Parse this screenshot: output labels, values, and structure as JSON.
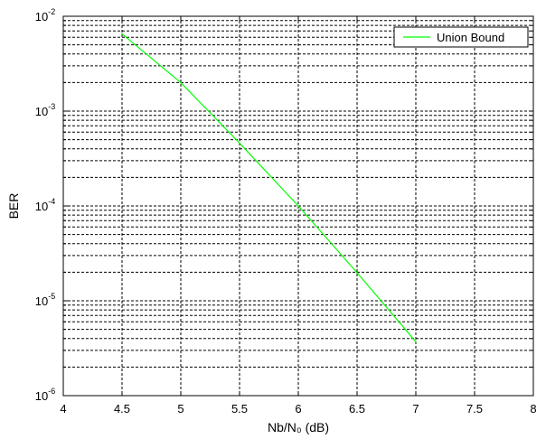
{
  "chart_data": {
    "type": "line",
    "title": "",
    "xlabel": "Nb/N₀ (dB)",
    "ylabel": "BER",
    "xlim": [
      4,
      8
    ],
    "ylim": [
      1e-06,
      0.01
    ],
    "yscale": "log",
    "grid": true,
    "legend_position": "top-right",
    "x_ticks": [
      4,
      4.5,
      5,
      5.5,
      6,
      6.5,
      7,
      7.5,
      8
    ],
    "x_tick_labels": [
      "4",
      "4.5",
      "5",
      "5.5",
      "6",
      "6.5",
      "7",
      "7.5",
      "8"
    ],
    "y_tick_labels": [
      {
        "base": "10",
        "exp": "-6",
        "value": 1e-06
      },
      {
        "base": "10",
        "exp": "-5",
        "value": 1e-05
      },
      {
        "base": "10",
        "exp": "-4",
        "value": 0.0001
      },
      {
        "base": "10",
        "exp": "-3",
        "value": 0.001
      },
      {
        "base": "10",
        "exp": "-2",
        "value": 0.01
      }
    ],
    "series": [
      {
        "name": "Union Bound",
        "color": "#00ff00",
        "x": [
          4.5,
          5.0,
          5.5,
          6.0,
          6.5,
          7.0
        ],
        "y": [
          0.0065,
          0.002,
          0.00046,
          0.0001,
          1.98e-05,
          3.7e-06
        ]
      }
    ]
  }
}
